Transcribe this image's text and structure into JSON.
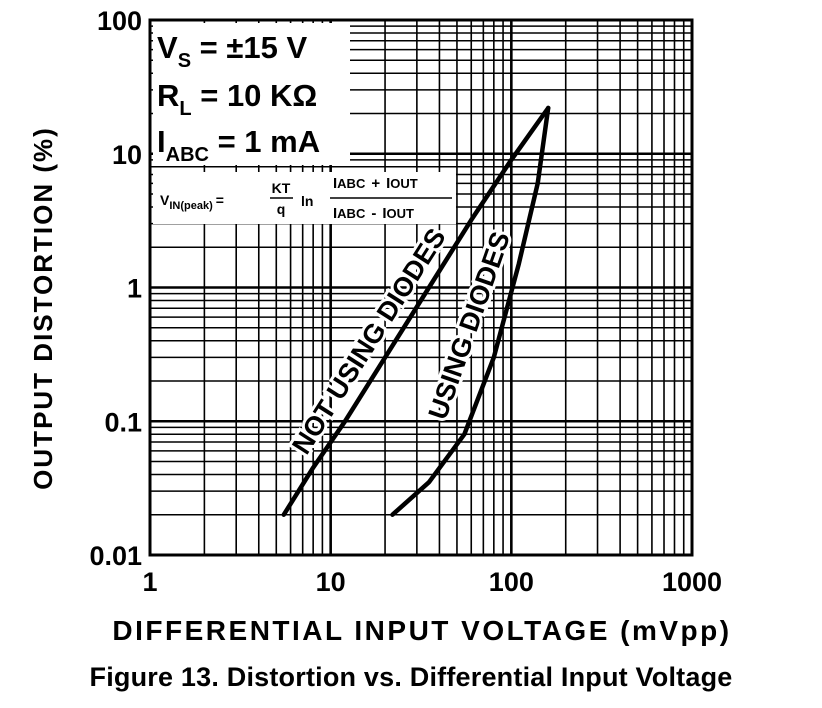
{
  "caption": "Figure 13. Distortion vs. Differential Input Voltage",
  "chart_data": {
    "type": "line",
    "xlabel": "DIFFERENTIAL INPUT VOLTAGE (mVpp)",
    "ylabel": "OUTPUT DISTORTION (%)",
    "x_scale": "log",
    "y_scale": "log",
    "xlim": [
      1,
      1000
    ],
    "ylim": [
      0.01,
      100
    ],
    "x_ticks": [
      1,
      10,
      100,
      1000
    ],
    "x_tick_labels": [
      "1",
      "10",
      "100",
      "1000"
    ],
    "y_ticks": [
      0.01,
      0.1,
      1,
      10,
      100
    ],
    "y_tick_labels": [
      "0.01",
      "0.1",
      "1",
      "10",
      "100"
    ],
    "grid": true,
    "conditions": {
      "vs": {
        "main": "V",
        "sub": "S",
        "rest": " = ±15 V"
      },
      "rl": {
        "main": "R",
        "sub": "L",
        "rest": " = 10 KΩ"
      },
      "iabc": {
        "main": "I",
        "sub": "ABC",
        "rest": " = 1 mA"
      }
    },
    "formula": {
      "lhs_main": "V",
      "lhs_sub": "IN(peak)",
      "eq": "=",
      "frac_num": "KT",
      "frac_den": "q",
      "ln": "ln",
      "num_a_main": "I",
      "num_a_sub": "ABC",
      "num_op": "+",
      "num_b_main": "I",
      "num_b_sub": "OUT",
      "den_a_main": "I",
      "den_a_sub": "ABC",
      "den_op": "-",
      "den_b_main": "I",
      "den_b_sub": "OUT"
    },
    "series": [
      {
        "name": "NOT USING DIODES",
        "x": [
          5.5,
          8,
          12,
          20,
          35,
          60,
          100,
          160
        ],
        "y": [
          0.02,
          0.045,
          0.1,
          0.3,
          1.0,
          3.2,
          9,
          22
        ]
      },
      {
        "name": "USING DIODES",
        "x": [
          22,
          35,
          55,
          80,
          110,
          140,
          160
        ],
        "y": [
          0.02,
          0.035,
          0.08,
          0.3,
          1.5,
          6,
          22
        ]
      }
    ]
  }
}
